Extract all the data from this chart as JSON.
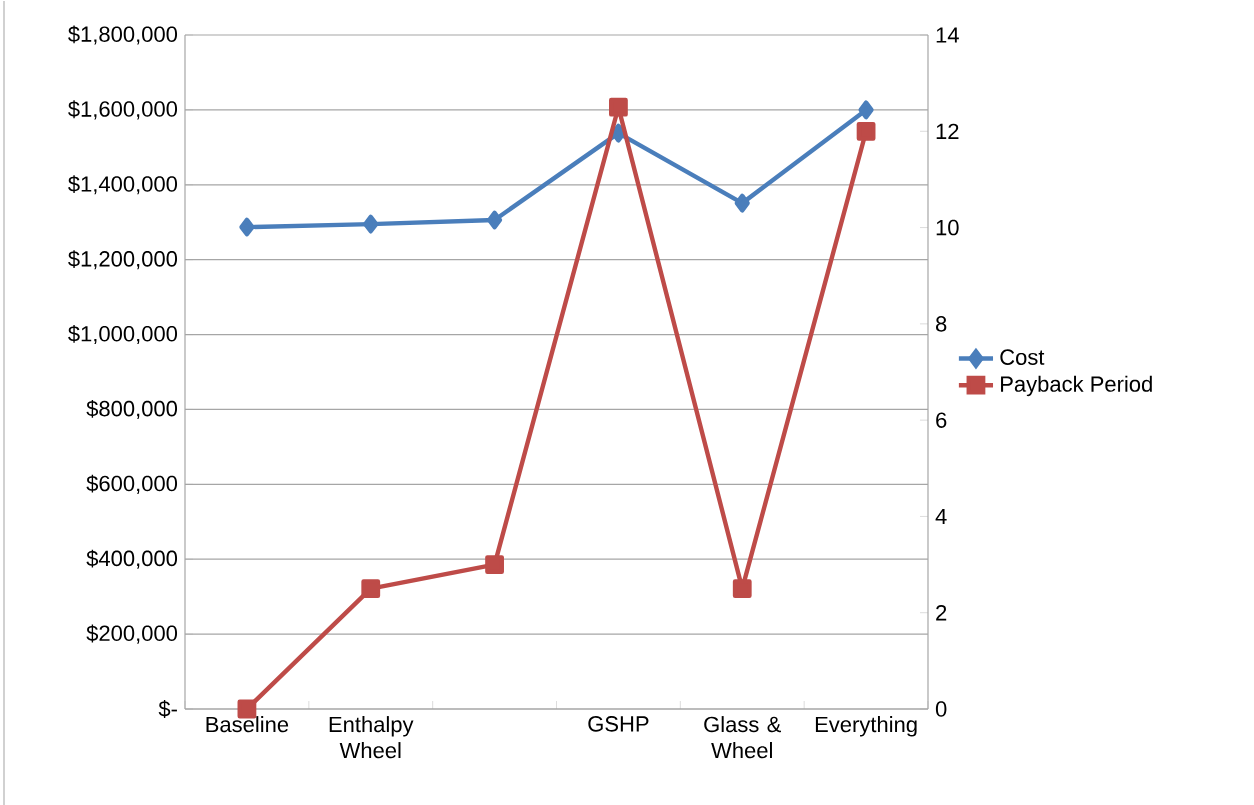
{
  "chart_data": {
    "type": "line",
    "categories": [
      "Baseline",
      "Enthalpy Wheel",
      null,
      "GSHP",
      "Glass & Wheel",
      "Everything"
    ],
    "series": [
      {
        "name": "Cost",
        "color": "#4a7ebb",
        "marker": "diamond",
        "values": [
          1287000,
          1295000,
          1306000,
          1538000,
          1351000,
          1600000
        ]
      },
      {
        "name": "Payback Period",
        "color": "#be4b48",
        "marker": "square",
        "axis": "y2",
        "values": [
          0,
          2.5,
          3,
          12.5,
          2.5,
          12
        ]
      }
    ],
    "ylim": [
      0,
      1800000
    ],
    "yticks": [
      {
        "value": 0,
        "label": "$-"
      },
      {
        "value": 200000,
        "label": "$200,000"
      },
      {
        "value": 400000,
        "label": "$400,000"
      },
      {
        "value": 600000,
        "label": "$600,000"
      },
      {
        "value": 800000,
        "label": "$800,000"
      },
      {
        "value": 1000000,
        "label": "$1,000,000"
      },
      {
        "value": 1200000,
        "label": "$1,200,000"
      },
      {
        "value": 1400000,
        "label": "$1,400,000"
      },
      {
        "value": 1600000,
        "label": "$1,600,000"
      },
      {
        "value": 1800000,
        "label": "$1,800,000"
      }
    ],
    "y2lim": [
      0,
      14
    ],
    "y2ticks": [
      0,
      2,
      4,
      6,
      8,
      10,
      12,
      14
    ],
    "grid": "y",
    "legend": "right"
  }
}
